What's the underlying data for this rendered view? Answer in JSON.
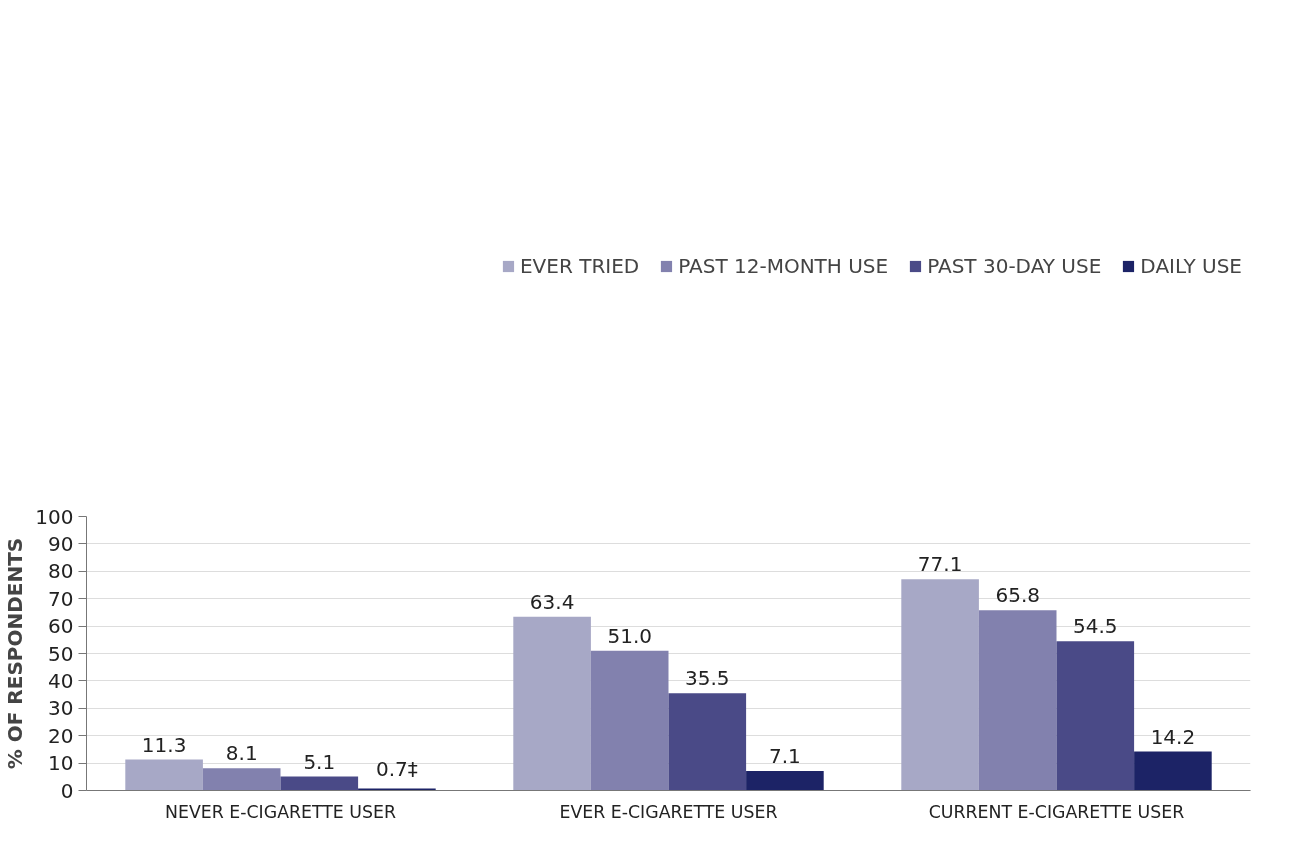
{
  "chart_data": {
    "type": "bar",
    "ylabel": "% OF RESPONDENTS",
    "categories": [
      "NEVER E-CIGARETTE USER",
      "EVER E-CIGARETTE USER",
      "CURRENT E-CIGARETTE USER"
    ],
    "series": [
      {
        "name": "EVER TRIED",
        "color": "#a7a8c6",
        "values": [
          11.3,
          63.4,
          77.1
        ],
        "value_labels": [
          "11.3",
          "63.4",
          "77.1"
        ]
      },
      {
        "name": "PAST 12-MONTH USE",
        "color": "#8281ae",
        "values": [
          8.1,
          51.0,
          65.8
        ],
        "value_labels": [
          "8.1",
          "51.0",
          "65.8"
        ]
      },
      {
        "name": "PAST 30-DAY USE",
        "color": "#4a4a87",
        "values": [
          5.1,
          35.5,
          54.5
        ],
        "value_labels": [
          "5.1",
          "35.5",
          "54.5"
        ]
      },
      {
        "name": "DAILY USE",
        "color": "#1c2366",
        "values": [
          0.7,
          7.1,
          14.2
        ],
        "value_labels": [
          "0.7‡",
          "7.1",
          "14.2"
        ]
      }
    ],
    "ylim": [
      0,
      100
    ],
    "yticks": [
      0,
      10,
      20,
      30,
      40,
      50,
      60,
      70,
      80,
      90,
      100
    ],
    "grid": "y",
    "legend": "top"
  }
}
